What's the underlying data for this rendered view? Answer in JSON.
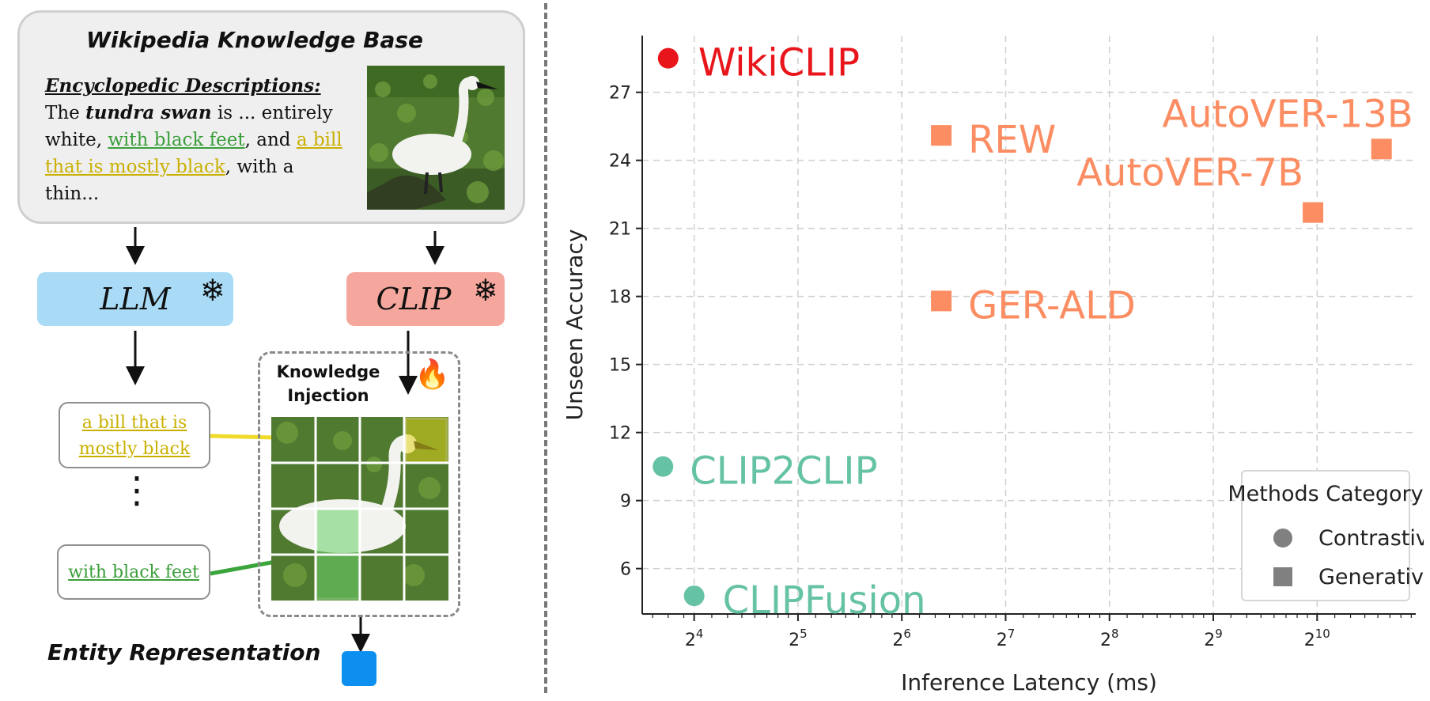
{
  "left_panel": {
    "kb_title": "Wikipedia Knowledge Base",
    "desc_heading": "Encyclopedic Descriptions:",
    "desc_the": "The ",
    "desc_species": "tundra swan",
    "desc_mid": " is ... entirely white, ",
    "desc_feet": "with black feet",
    "desc_and": ", and ",
    "desc_bill": "a bill that is mostly black",
    "desc_end": ", with a thin...",
    "llm_label": "LLM",
    "clip_label": "CLIP",
    "frozen_symbol": "❄",
    "fire_symbol": "🔥",
    "ki_line1": "Knowledge",
    "ki_line2": "Injection",
    "phrase_bill_line1": "a bill that is",
    "phrase_bill_line2": "mostly black",
    "phrase_dots": "⋮",
    "phrase_feet": "with black feet",
    "entity_label": "Entity Representation"
  },
  "colors": {
    "llm": "#a9dbf6",
    "clip": "#f6a79d",
    "contrastive": "#66c2a5",
    "generative": "#fc8d62",
    "ours": "#e8151b",
    "entity": "#0d8ff0"
  },
  "chart_data": {
    "type": "scatter",
    "xlabel": "Inference Latency (ms)",
    "ylabel": "Unseen Accuracy",
    "x_scale": "log2",
    "xlim_log2": [
      3.5,
      10.95
    ],
    "ylim": [
      4,
      29.5
    ],
    "x_ticks": [
      {
        "exp": 4,
        "base": "2",
        "sup": "4"
      },
      {
        "exp": 5,
        "base": "2",
        "sup": "5"
      },
      {
        "exp": 6,
        "base": "2",
        "sup": "6"
      },
      {
        "exp": 7,
        "base": "2",
        "sup": "7"
      },
      {
        "exp": 8,
        "base": "2",
        "sup": "8"
      },
      {
        "exp": 9,
        "base": "2",
        "sup": "9"
      },
      {
        "exp": 10,
        "base": "2",
        "sup": "10"
      }
    ],
    "y_ticks": [
      6,
      9,
      12,
      15,
      18,
      21,
      24,
      27
    ],
    "grid": true,
    "legend": {
      "title": "Methods Category",
      "position": "lower-right",
      "entries": [
        {
          "label": "Contrastive",
          "shape": "circle"
        },
        {
          "label": "Generative",
          "shape": "square"
        }
      ]
    },
    "points": [
      {
        "name": "WikiCLIP",
        "log2_x": 3.75,
        "y": 28.5,
        "shape": "circle",
        "color": "#e8151b"
      },
      {
        "name": "REW",
        "log2_x": 6.38,
        "y": 25.1,
        "shape": "square",
        "color": "#fc8d62"
      },
      {
        "name": "AutoVER-13B",
        "log2_x": 10.62,
        "y": 24.5,
        "shape": "square",
        "color": "#fc8d62"
      },
      {
        "name": "AutoVER-7B",
        "log2_x": 9.96,
        "y": 21.7,
        "shape": "square",
        "color": "#fc8d62"
      },
      {
        "name": "GER-ALD",
        "log2_x": 6.38,
        "y": 17.8,
        "shape": "square",
        "color": "#fc8d62"
      },
      {
        "name": "CLIP2CLIP",
        "log2_x": 3.7,
        "y": 10.5,
        "shape": "circle",
        "color": "#66c2a5"
      },
      {
        "name": "CLIPFusion",
        "log2_x": 4.0,
        "y": 4.8,
        "shape": "circle",
        "color": "#66c2a5"
      }
    ]
  }
}
